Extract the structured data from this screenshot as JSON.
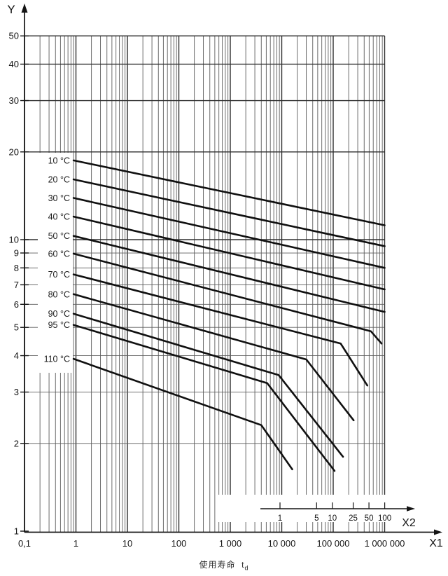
{
  "figure": {
    "background": "#ffffff",
    "ink": "#141414",
    "grid_major_color": "#2e2e2e",
    "grid_minor_color": "#5c5c5c",
    "y_axis": {
      "name": "Y",
      "scale": "log",
      "range": [
        1,
        50
      ],
      "tick_labels": [
        "50",
        "40",
        "30",
        "20",
        "10",
        "9",
        "8",
        "7",
        "6",
        "5",
        "4",
        "3",
        "2",
        "1"
      ],
      "tick_values": [
        50,
        40,
        30,
        20,
        10,
        9,
        8,
        7,
        6,
        5,
        4,
        3,
        2,
        1
      ]
    },
    "x1_axis": {
      "name": "X1",
      "scale": "log",
      "range": [
        0.1,
        1000000
      ],
      "tick_labels": [
        "0,1",
        "1",
        "10",
        "100",
        "1 000",
        "10 000",
        "100 000",
        "1 000 000"
      ],
      "tick_values": [
        0.1,
        1,
        10,
        100,
        1000,
        10000,
        100000,
        1000000
      ]
    },
    "x2_axis": {
      "name": "X2",
      "scale": "log",
      "tick_labels": [
        "1",
        "5",
        "10",
        "25",
        "50",
        "100"
      ],
      "tick_values": [
        1,
        5,
        10,
        25,
        50,
        100
      ]
    },
    "caption": {
      "text": "使用寿命",
      "symbol": "t",
      "subscript": "d"
    }
  },
  "chart_data": {
    "type": "line",
    "xscale": "log",
    "yscale": "log",
    "xlabel": "使用寿命 td (X1)",
    "ylabel": "Y",
    "xlim": [
      0.1,
      1000000
    ],
    "ylim": [
      1,
      50
    ],
    "grid": true,
    "legend_position": "inline-left-labels",
    "series": [
      {
        "name": "10 °C",
        "points": [
          [
            0.9,
            18.7
          ],
          [
            1000000,
            11.2
          ]
        ]
      },
      {
        "name": "20 °C",
        "points": [
          [
            0.9,
            16.1
          ],
          [
            1000000,
            9.5
          ]
        ]
      },
      {
        "name": "30 °C",
        "points": [
          [
            0.9,
            13.9
          ],
          [
            1000000,
            8.0
          ]
        ]
      },
      {
        "name": "40 °C",
        "points": [
          [
            0.9,
            12.0
          ],
          [
            1000000,
            6.75
          ]
        ]
      },
      {
        "name": "50 °C",
        "points": [
          [
            0.9,
            10.3
          ],
          [
            1000000,
            5.65
          ]
        ]
      },
      {
        "name": "60 °C",
        "points": [
          [
            0.9,
            8.95
          ],
          [
            540000,
            4.85
          ],
          [
            870000,
            4.4
          ]
        ]
      },
      {
        "name": "70 °C",
        "points": [
          [
            0.9,
            7.6
          ],
          [
            140000,
            4.4
          ],
          [
            460000,
            3.16
          ]
        ]
      },
      {
        "name": "80 °C",
        "points": [
          [
            0.9,
            6.5
          ],
          [
            30000,
            3.88
          ],
          [
            250000,
            2.4
          ]
        ]
      },
      {
        "name": "90 °C",
        "points": [
          [
            0.9,
            5.57
          ],
          [
            8700,
            3.43
          ],
          [
            155000,
            1.8
          ]
        ]
      },
      {
        "name": "95 °C",
        "points": [
          [
            0.9,
            5.1
          ],
          [
            5200,
            3.22
          ],
          [
            106000,
            1.61
          ]
        ]
      },
      {
        "name": "110 °C",
        "points": [
          [
            0.9,
            3.9
          ],
          [
            4000,
            2.31
          ],
          [
            16000,
            1.63
          ]
        ]
      }
    ]
  }
}
